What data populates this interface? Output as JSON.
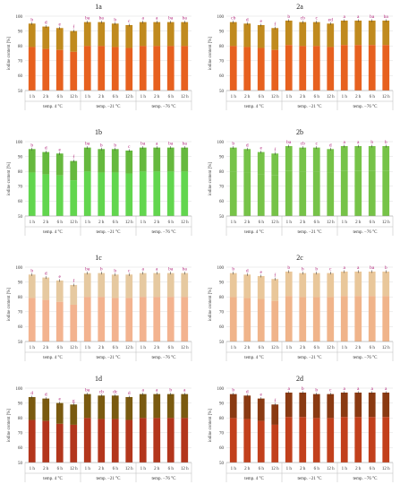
{
  "figure": {
    "ylabel": "iodine content [%]",
    "y_ticks": [
      "100",
      "90",
      "80",
      "70",
      "60",
      "50"
    ],
    "category_labels": [
      "1 h",
      "2 h",
      "6 h",
      "12 h",
      "1 h",
      "2 h",
      "6 h",
      "12 h",
      "1 h",
      "2 h",
      "6 h",
      "12 h"
    ],
    "group_labels": [
      "temp. 4 °C",
      "temp. −21 °C",
      "temp. −76 °C"
    ]
  },
  "chart_data": [
    {
      "id": "1a",
      "title": "1a",
      "type": "bar",
      "colors": {
        "top": "#c08a1e",
        "bottom": "#e7611f"
      },
      "categories": [
        "1 h",
        "2 h",
        "6 h",
        "12 h",
        "1 h",
        "2 h",
        "6 h",
        "12 h",
        "1 h",
        "2 h",
        "6 h",
        "12 h"
      ],
      "values": [
        95,
        93,
        92,
        90,
        96,
        96,
        95,
        94,
        96,
        96,
        96,
        96
      ],
      "letters": [
        "b",
        "d",
        "e",
        "f",
        "ba",
        "ba",
        "b",
        "c",
        "a",
        "a",
        "ba",
        "ba"
      ],
      "ylim": [
        50,
        100
      ],
      "xlabel": "",
      "ylabel": "iodine content [%]"
    },
    {
      "id": "2a",
      "title": "2a",
      "type": "bar",
      "colors": {
        "top": "#c08a1e",
        "bottom": "#e7611f"
      },
      "categories": [
        "1 h",
        "2 h",
        "6 h",
        "12 h",
        "1 h",
        "2 h",
        "6 h",
        "12 h",
        "1 h",
        "2 h",
        "6 h",
        "12 h"
      ],
      "values": [
        96,
        95,
        94,
        92,
        97,
        96,
        96,
        95,
        97,
        97,
        97,
        97
      ],
      "letters": [
        "cb",
        "d",
        "e",
        "f",
        "b",
        "cb",
        "c",
        "ed",
        "a",
        "a",
        "ba",
        "ba"
      ],
      "ylim": [
        50,
        100
      ],
      "xlabel": "",
      "ylabel": "iodine content [%]"
    },
    {
      "id": "1b",
      "title": "1b",
      "type": "bar",
      "colors": {
        "top": "#66b93e",
        "bottom": "#62d64e"
      },
      "categories": [
        "1 h",
        "2 h",
        "6 h",
        "12 h",
        "1 h",
        "2 h",
        "6 h",
        "12 h",
        "1 h",
        "2 h",
        "6 h",
        "12 h"
      ],
      "values": [
        95,
        93,
        92,
        87,
        96,
        95,
        95,
        94,
        96,
        96,
        96,
        96
      ],
      "letters": [
        "b",
        "d",
        "e",
        "f",
        "ba",
        "b",
        "b",
        "c",
        "ba",
        "a",
        "ba",
        "ba"
      ],
      "ylim": [
        50,
        100
      ],
      "xlabel": "",
      "ylabel": "iodine content [%]"
    },
    {
      "id": "2b",
      "title": "2b",
      "type": "bar",
      "colors": {
        "top": "#76c348",
        "bottom": "#76c348"
      },
      "categories": [
        "1 h",
        "2 h",
        "6 h",
        "12 h",
        "1 h",
        "2 h",
        "6 h",
        "12 h",
        "1 h",
        "2 h",
        "6 h",
        "12 h"
      ],
      "values": [
        96,
        95,
        93,
        92,
        97,
        96,
        96,
        95,
        97,
        97,
        97,
        97
      ],
      "letters": [
        "b",
        "d",
        "e",
        "f",
        "ba",
        "cb",
        "c",
        "d",
        "a",
        "a",
        "b",
        "b"
      ],
      "ylim": [
        50,
        100
      ],
      "xlabel": "",
      "ylabel": "iodine content [%]"
    },
    {
      "id": "1c",
      "title": "1c",
      "type": "bar",
      "colors": {
        "top": "#e6c9a0",
        "bottom": "#f3b38f"
      },
      "categories": [
        "1 h",
        "2 h",
        "6 h",
        "12 h",
        "1 h",
        "2 h",
        "6 h",
        "12 h",
        "1 h",
        "2 h",
        "6 h",
        "12 h"
      ],
      "values": [
        95,
        93,
        91,
        88,
        96,
        96,
        95,
        95,
        96,
        96,
        96,
        96
      ],
      "letters": [
        "b",
        "d",
        "e",
        "f",
        "ba",
        "b",
        "b",
        "c",
        "a",
        "a",
        "ba",
        "ba"
      ],
      "ylim": [
        50,
        100
      ],
      "xlabel": "",
      "ylabel": "iodine content [%]"
    },
    {
      "id": "2c",
      "title": "2c",
      "type": "bar",
      "colors": {
        "top": "#e9c79a",
        "bottom": "#f0b48a"
      },
      "categories": [
        "1 h",
        "2 h",
        "6 h",
        "12 h",
        "1 h",
        "2 h",
        "6 h",
        "12 h",
        "1 h",
        "2 h",
        "6 h",
        "12 h"
      ],
      "values": [
        96,
        95,
        94,
        92,
        97,
        96,
        96,
        96,
        97,
        97,
        97,
        97
      ],
      "letters": [
        "b",
        "d",
        "e",
        "f",
        "b",
        "b",
        "b",
        "c",
        "a",
        "a",
        "ba",
        "b"
      ],
      "ylim": [
        50,
        100
      ],
      "xlabel": "",
      "ylabel": "iodine content [%]"
    },
    {
      "id": "1d",
      "title": "1d",
      "type": "bar",
      "colors": {
        "top": "#7a5a10",
        "bottom": "#b3361c"
      },
      "categories": [
        "1 h",
        "2 h",
        "6 h",
        "12 h",
        "1 h",
        "2 h",
        "6 h",
        "12 h",
        "1 h",
        "2 h",
        "6 h",
        "12 h"
      ],
      "values": [
        94,
        93,
        90,
        89,
        96,
        95,
        95,
        94,
        96,
        96,
        96,
        96
      ],
      "letters": [
        "d",
        "d",
        "e",
        "g",
        "ba",
        "cb",
        "dc",
        "d",
        "a",
        "a",
        "b",
        "a"
      ],
      "ylim": [
        50,
        100
      ],
      "xlabel": "",
      "ylabel": "iodine content [%]"
    },
    {
      "id": "2d",
      "title": "2d",
      "type": "bar",
      "colors": {
        "top": "#8a3a12",
        "bottom": "#c2401c"
      },
      "categories": [
        "1 h",
        "2 h",
        "6 h",
        "12 h",
        "1 h",
        "2 h",
        "6 h",
        "12 h",
        "1 h",
        "2 h",
        "6 h",
        "12 h"
      ],
      "values": [
        96,
        95,
        93,
        89,
        97,
        97,
        96,
        96,
        97,
        97,
        97,
        97
      ],
      "letters": [
        "b",
        "d",
        "e",
        "f",
        "a",
        "b",
        "b",
        "c",
        "a",
        "a",
        "a",
        "a"
      ],
      "ylim": [
        50,
        100
      ],
      "xlabel": "",
      "ylabel": "iodine content [%]"
    }
  ]
}
